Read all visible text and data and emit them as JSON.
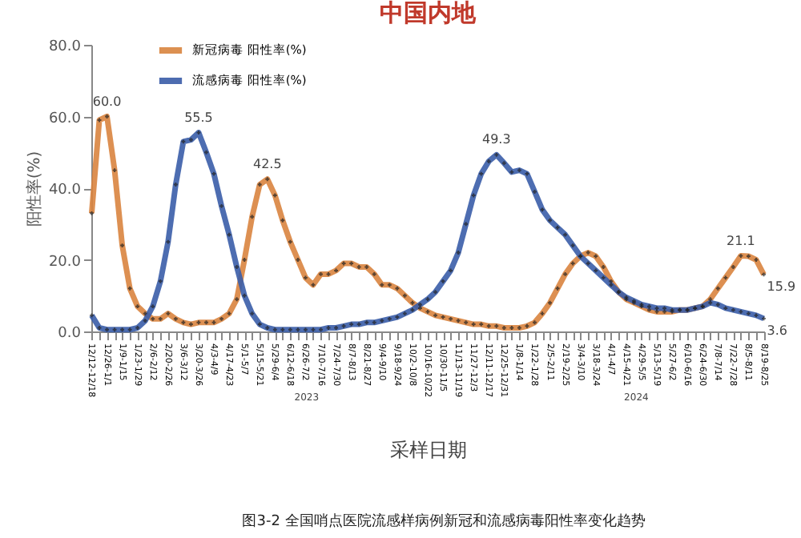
{
  "chart_data": {
    "type": "line",
    "title": "中国内地",
    "xlabel": "采样日期",
    "ylabel": "阳性率(%)",
    "categories": [
      "12/12-12/18",
      null,
      "12/26-1/1",
      null,
      "1/9-1/15",
      null,
      "1/23-1/29",
      null,
      "2/6-2/12",
      null,
      "2/20-2/26",
      null,
      "3/6-3/12",
      null,
      "3/20-3/26",
      null,
      "4/3-4/9",
      null,
      "4/17-4/23",
      null,
      "5/1-5/7",
      null,
      "5/15-5/21",
      null,
      "5/29-6/4",
      null,
      "6/12-6/18",
      null,
      "6/26-7/2",
      null,
      "7/10-7/16",
      null,
      "7/24-7/30",
      null,
      "8/7-8/13",
      null,
      "8/21-8/27",
      null,
      "9/4-9/10",
      null,
      "9/18-9/24",
      null,
      "10/2-10/8",
      null,
      "10/16-10/22",
      null,
      "10/30-11/5",
      null,
      "11/13-11/19",
      null,
      "11/27-12/3",
      null,
      "12/11-12/17",
      null,
      "12/25-12/31",
      null,
      "1/8-1/14",
      null,
      "1/22-1/28",
      null,
      "2/5-2/11",
      null,
      "2/19-2/25",
      null,
      "3/4-3/10",
      null,
      "3/18-3/24",
      null,
      "4/1-4/7",
      null,
      "4/15-4/21",
      null,
      "4/29-5/5",
      null,
      "5/13-5/19",
      null,
      "5/27-6/2",
      null,
      "6/10-6/16",
      null,
      "6/24-6/30",
      null,
      "7/8-7/14",
      null,
      "7/22-7/28",
      null,
      "8/5-8/11",
      null,
      "8/19-8/25"
    ],
    "series": [
      {
        "name": "新冠病毒 阳性率(%)",
        "color": "#d9843f",
        "values": [
          33,
          59,
          60,
          45,
          24,
          12,
          7,
          5,
          3.5,
          3.5,
          5,
          3.5,
          2.5,
          2,
          2.5,
          2.5,
          2.5,
          3.5,
          5,
          9,
          20,
          32,
          41,
          42.5,
          38,
          31,
          25,
          20,
          15,
          13,
          16,
          16,
          17,
          19,
          19,
          18,
          18,
          16,
          13,
          13,
          12,
          10,
          8,
          6.5,
          5.5,
          4.5,
          4,
          3.5,
          3,
          2.5,
          2,
          2,
          1.5,
          1.5,
          1,
          1,
          1,
          1.5,
          2.5,
          5,
          8,
          12,
          16,
          19,
          21,
          22,
          21,
          18,
          14,
          11,
          9,
          8,
          7,
          6,
          5.5,
          5.5,
          5.5,
          6,
          6,
          6.5,
          7,
          9,
          12,
          15,
          18,
          21.1,
          21,
          20,
          15.9
        ],
        "value_labels": [
          null,
          null,
          "60.0",
          null,
          null,
          null,
          null,
          null,
          null,
          null,
          null,
          null,
          null,
          null,
          null,
          null,
          null,
          null,
          null,
          null,
          null,
          null,
          null,
          "42.5",
          null,
          null,
          null,
          null,
          null,
          null,
          null,
          null,
          null,
          null,
          null,
          null,
          null,
          null,
          null,
          null,
          null,
          null,
          null,
          null,
          null,
          null,
          null,
          null,
          null,
          null,
          null,
          null,
          null,
          null,
          null,
          null,
          null,
          null,
          null,
          null,
          null,
          null,
          null,
          null,
          null,
          null,
          null,
          null,
          null,
          null,
          null,
          null,
          null,
          null,
          null,
          null,
          null,
          null,
          null,
          null,
          null,
          null,
          null,
          null,
          null,
          "21.1",
          null,
          null,
          "15.9"
        ]
      },
      {
        "name": "流感病毒 阳性率(%)",
        "color": "#3a5da8",
        "values": [
          4.5,
          1,
          0.5,
          0.5,
          0.5,
          0.5,
          1,
          3,
          7,
          14,
          25,
          41,
          53,
          53.5,
          55.5,
          50,
          44,
          35,
          27,
          18,
          10,
          5,
          2,
          1,
          0.5,
          0.5,
          0.5,
          0.5,
          0.5,
          0.5,
          0.5,
          1,
          1,
          1.5,
          2,
          2,
          2.5,
          2.5,
          3,
          3.5,
          4,
          5,
          6,
          7.5,
          9,
          11,
          14,
          17,
          22,
          30,
          38,
          44,
          47.5,
          49.3,
          47,
          44.5,
          45,
          44,
          39,
          34,
          31,
          29,
          27,
          24,
          21,
          19,
          17,
          15,
          13,
          11,
          9.5,
          8.5,
          7.5,
          7,
          6.5,
          6.5,
          6,
          6,
          6,
          6.5,
          7,
          8,
          7.5,
          6.5,
          6,
          5.5,
          5,
          4.5,
          3.6
        ],
        "value_labels": [
          null,
          null,
          null,
          null,
          null,
          null,
          null,
          null,
          null,
          null,
          null,
          null,
          null,
          null,
          "55.5",
          null,
          null,
          null,
          null,
          null,
          null,
          null,
          null,
          null,
          null,
          null,
          null,
          null,
          null,
          null,
          null,
          null,
          null,
          null,
          null,
          null,
          null,
          null,
          null,
          null,
          null,
          null,
          null,
          null,
          null,
          null,
          null,
          null,
          null,
          null,
          null,
          null,
          null,
          "49.3",
          null,
          null,
          null,
          null,
          null,
          null,
          null,
          null,
          null,
          null,
          null,
          null,
          null,
          null,
          null,
          null,
          null,
          null,
          null,
          null,
          null,
          null,
          null,
          null,
          null,
          null,
          null,
          null,
          null,
          null,
          null,
          null,
          null,
          null,
          "3.6"
        ]
      }
    ],
    "ylim": [
      0,
      80
    ],
    "yticks": [
      {
        "value": 0,
        "label": "0.0"
      },
      {
        "value": 20,
        "label": "20.0"
      },
      {
        "value": 40,
        "label": "40.0"
      },
      {
        "value": 60,
        "label": "60.0"
      },
      {
        "value": 80,
        "label": "80.0"
      }
    ],
    "grid": false,
    "legend": "top left",
    "marker": "cross",
    "line_style": "solid",
    "annotations": [
      "2023",
      "2024",
      "图3-2 全国哨点医院流感样病例新冠和流感病毒阳性率变化趋势"
    ]
  }
}
